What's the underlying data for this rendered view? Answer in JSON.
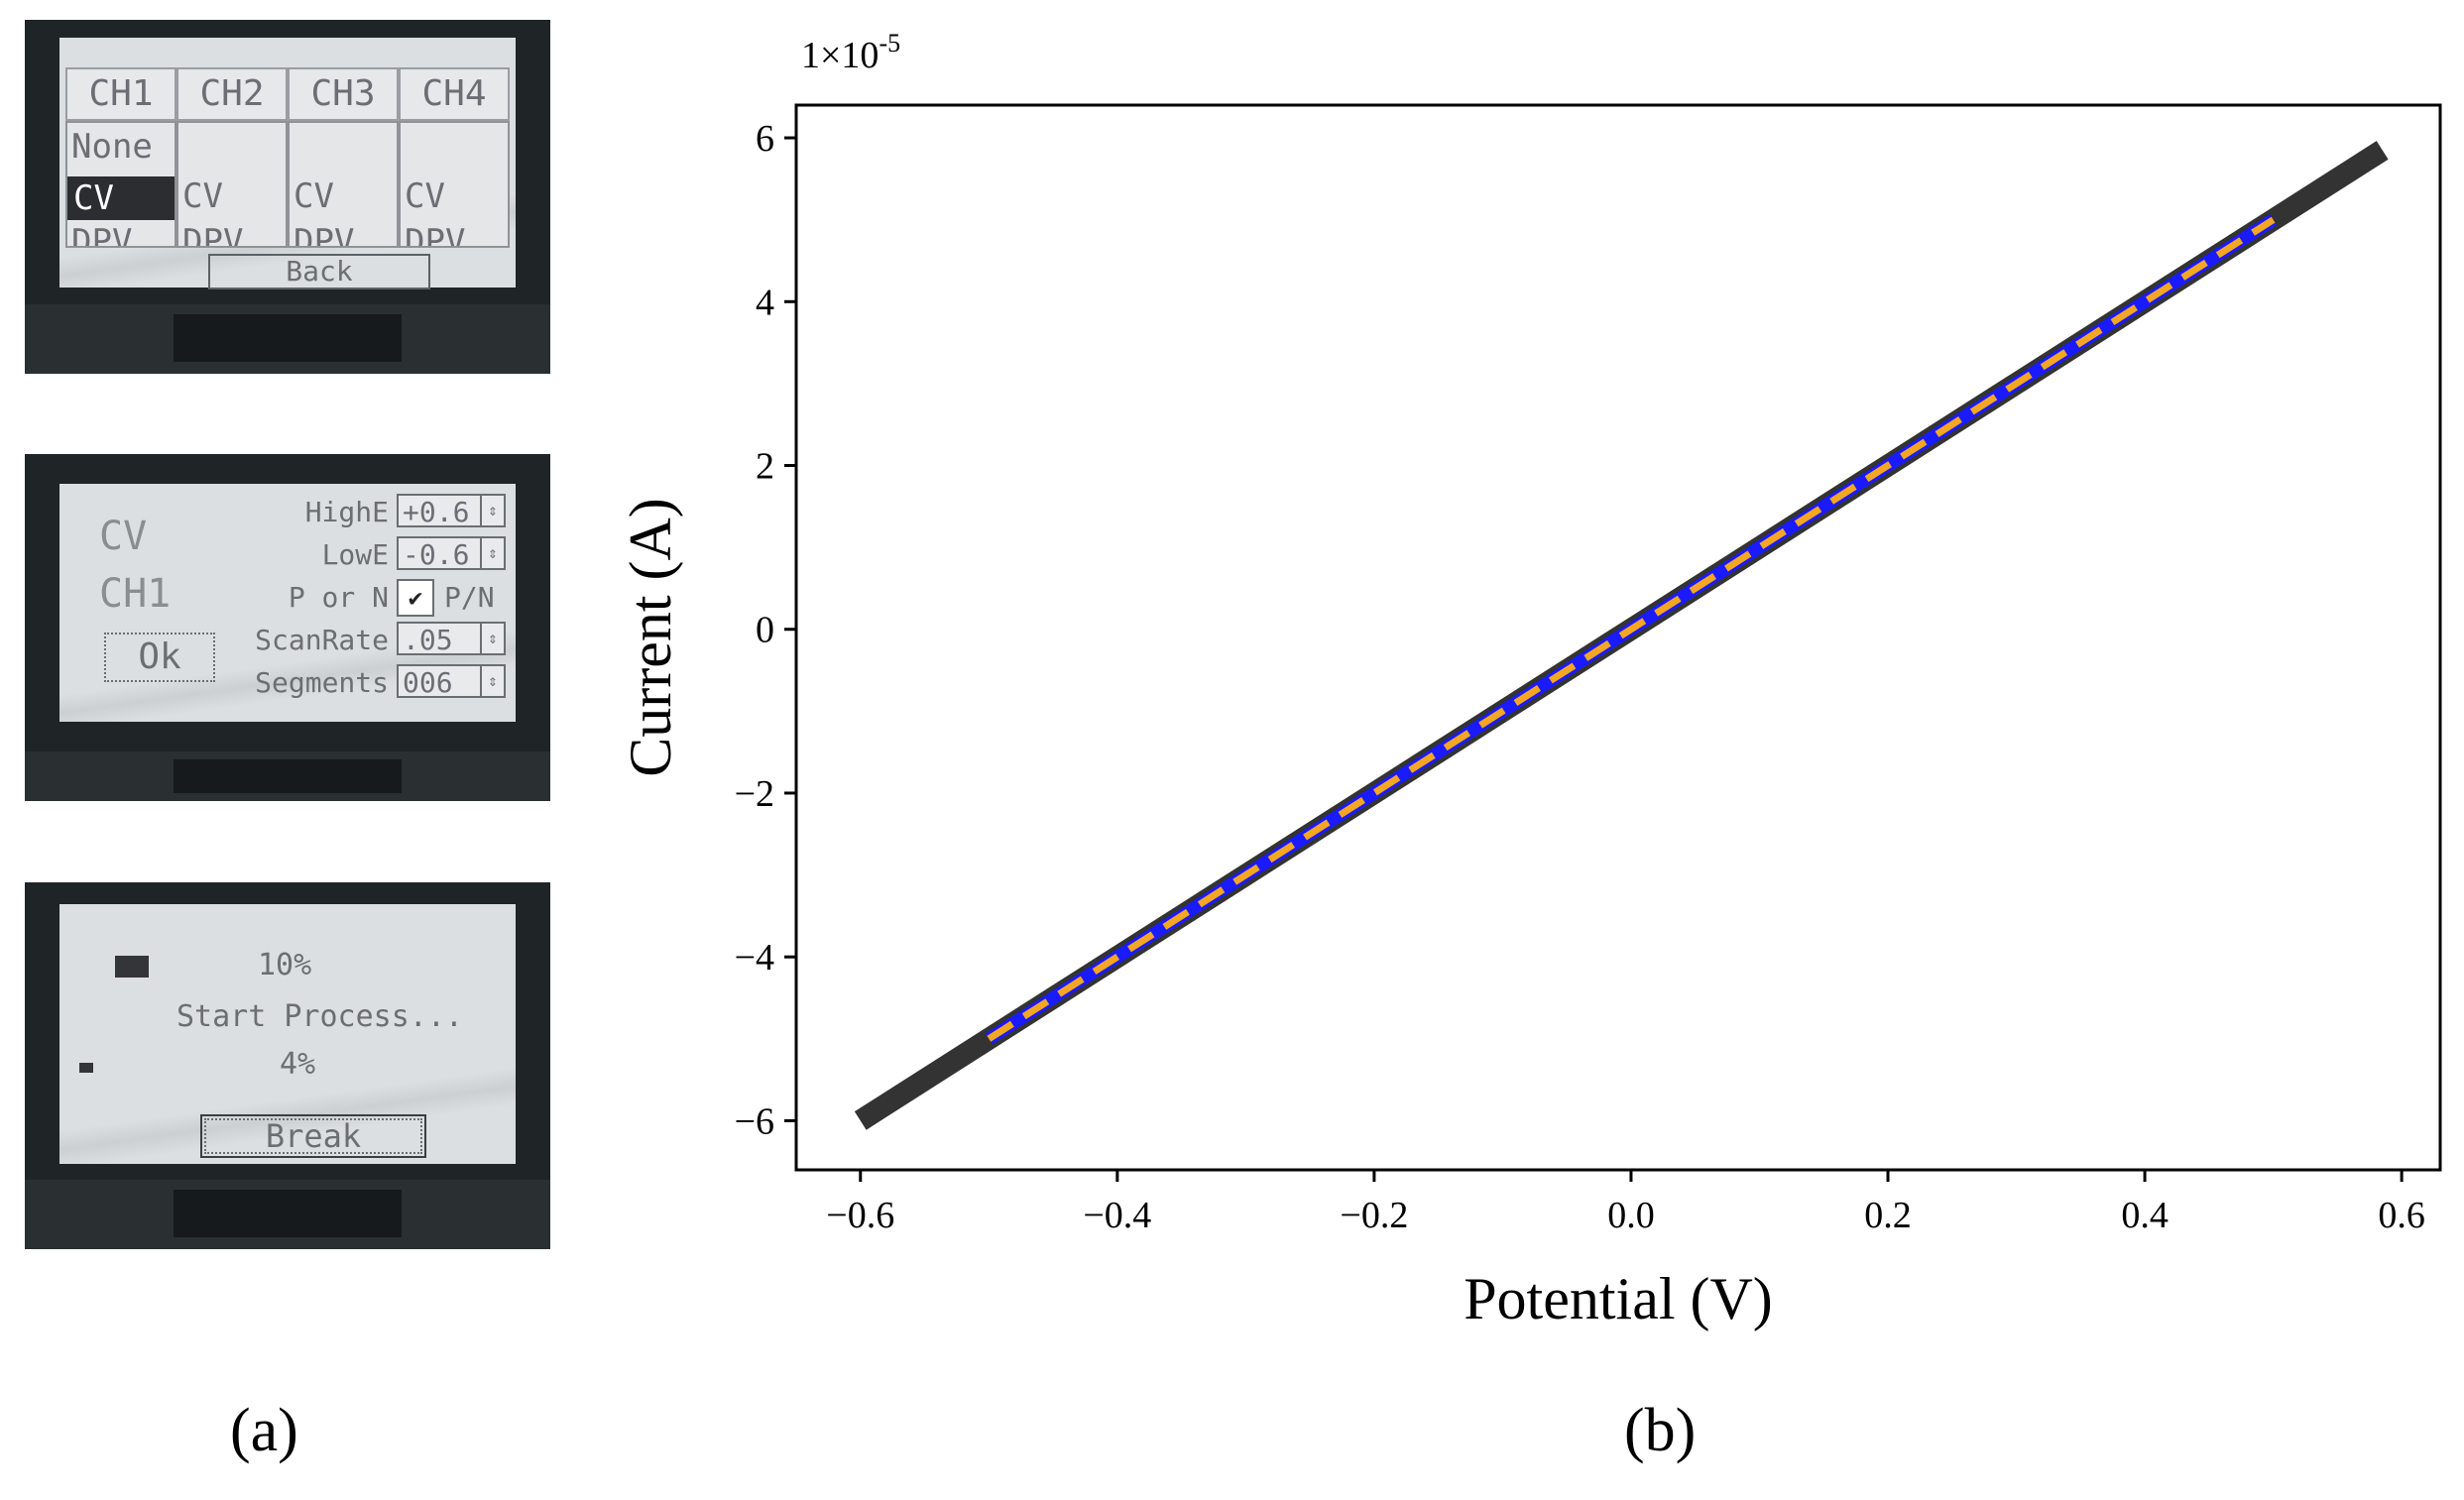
{
  "panel_labels": {
    "a": "(a)",
    "b": "(b)"
  },
  "lcd1": {
    "tabs": [
      "CH1",
      "CH2",
      "CH3",
      "CH4"
    ],
    "ch1_options": [
      "None",
      "CV",
      "DPV"
    ],
    "other_options": [
      "CV",
      "DPV"
    ],
    "back_label": "Back"
  },
  "lcd2": {
    "mode": "CV",
    "channel": "CH1",
    "ok_label": "Ok",
    "params": [
      {
        "label": "HighE",
        "value": "+0.6"
      },
      {
        "label": "LowE",
        "value": "-0.6"
      },
      {
        "label": "P or N",
        "value": "P/N",
        "checked": "✔"
      },
      {
        "label": "ScanRate",
        "value": ".05"
      },
      {
        "label": "Segments",
        "value": "006"
      }
    ]
  },
  "lcd3": {
    "top_progress": "10%",
    "top_progress_value": 10,
    "status": "Start Process...",
    "bottom_progress": "4%",
    "bottom_progress_value": 4,
    "break_label": "Break"
  },
  "chart_data": {
    "type": "line",
    "title": "",
    "xlabel": "Potential (V)",
    "ylabel": "Current (A)",
    "y_multiplier": "1×10",
    "y_multiplier_exp": "-5",
    "xlim": [
      -0.65,
      0.63
    ],
    "ylim": [
      -6.6,
      6.4
    ],
    "x_ticks": [
      -0.6,
      -0.4,
      -0.2,
      0.0,
      0.2,
      0.4,
      0.6
    ],
    "x_tick_labels": [
      "−0.6",
      "−0.4",
      "−0.2",
      "0.0",
      "0.2",
      "0.4",
      "0.6"
    ],
    "y_ticks": [
      -6,
      -4,
      -2,
      0,
      2,
      4,
      6
    ],
    "y_tick_labels": [
      "−6",
      "−4",
      "−2",
      "0",
      "2",
      "4",
      "6"
    ],
    "grid": false,
    "series": [
      {
        "color": "#333333",
        "style": "solid",
        "x": [
          -0.6,
          0.585
        ],
        "y": [
          -6.0,
          5.85
        ]
      },
      {
        "color": "#1a1aff",
        "style": "solid",
        "x": [
          -0.5,
          0.5
        ],
        "y": [
          -5.0,
          5.0
        ]
      },
      {
        "color": "#f5a623",
        "style": "dashed",
        "x": [
          -0.5,
          0.5
        ],
        "y": [
          -5.0,
          5.0
        ]
      }
    ]
  }
}
